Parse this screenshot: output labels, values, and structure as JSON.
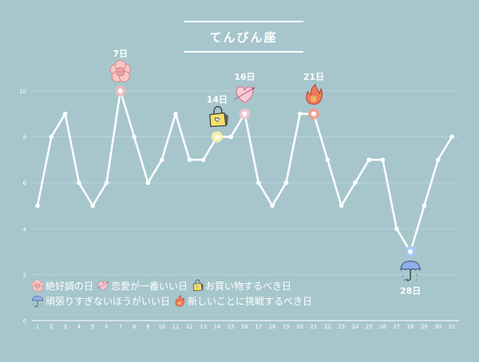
{
  "title": "てんびん座",
  "chart_data": {
    "type": "line",
    "x": [
      1,
      2,
      3,
      4,
      5,
      6,
      7,
      8,
      9,
      10,
      11,
      12,
      13,
      14,
      15,
      16,
      17,
      18,
      19,
      20,
      21,
      22,
      23,
      24,
      25,
      26,
      27,
      28,
      29,
      30,
      31
    ],
    "values": [
      5,
      8,
      9,
      6,
      5,
      6,
      10,
      8,
      6,
      7,
      9,
      7,
      7,
      8,
      8,
      9,
      6,
      5,
      6,
      9,
      9,
      7,
      5,
      6,
      7,
      7,
      4,
      3,
      5,
      7,
      8
    ],
    "ylim": [
      0,
      11
    ],
    "yticks": [
      0,
      2,
      4,
      6,
      8,
      10
    ],
    "grid": true,
    "line_color": "#ffffff",
    "annotations": [
      {
        "day": 7,
        "label": "7日",
        "icon": "flower-icon",
        "glow": "#f2b8b8"
      },
      {
        "day": 14,
        "label": "14日",
        "icon": "shopping-bag-icon",
        "glow": "#fff6a0"
      },
      {
        "day": 16,
        "label": "16日",
        "icon": "heart-icon",
        "glow": "#f0c6d0"
      },
      {
        "day": 21,
        "label": "21日",
        "icon": "flame-icon",
        "glow": "#f39a8a"
      },
      {
        "day": 28,
        "label": "28日",
        "icon": "umbrella-icon",
        "glow": "#a8c4f2"
      }
    ]
  },
  "legend": {
    "row1": [
      {
        "icon": "flower-icon",
        "text": "絶好調の日"
      },
      {
        "icon": "heart-icon",
        "text": "恋愛が一番いい日"
      },
      {
        "icon": "shopping-bag-icon",
        "text": "お買い物するべき日"
      }
    ],
    "row2": [
      {
        "icon": "umbrella-icon",
        "text": "頑張りすぎないほうがいい日"
      },
      {
        "icon": "flame-icon",
        "text": "新しいことに挑戦するべき日"
      }
    ]
  }
}
